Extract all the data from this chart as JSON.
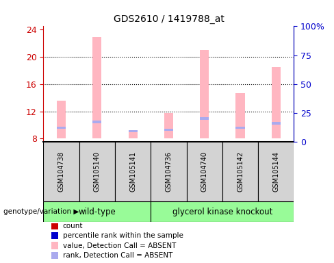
{
  "title": "GDS2610 / 1419788_at",
  "samples": [
    "GSM104738",
    "GSM105140",
    "GSM105141",
    "GSM104736",
    "GSM104740",
    "GSM105142",
    "GSM105144"
  ],
  "wt_count": 3,
  "gk_count": 4,
  "group_labels": [
    "wild-type",
    "glycerol kinase knockout"
  ],
  "group_color": "#98FB98",
  "ylim_left": [
    7.5,
    24.5
  ],
  "ylim_right": [
    0,
    100
  ],
  "yticks_left": [
    8,
    12,
    16,
    20,
    24
  ],
  "yticks_right": [
    0,
    25,
    50,
    75,
    100
  ],
  "yticklabels_right": [
    "0",
    "25",
    "50",
    "75",
    "100%"
  ],
  "bar_bottom": 8.0,
  "pink_top": [
    13.6,
    22.9,
    9.2,
    11.8,
    21.0,
    14.7,
    18.5
  ],
  "blue_y": [
    9.4,
    10.3,
    8.9,
    9.1,
    10.8,
    9.4,
    10.1
  ],
  "blue_h": [
    0.35,
    0.35,
    0.35,
    0.35,
    0.35,
    0.35,
    0.35
  ],
  "pink_color": "#FFB6C1",
  "blue_color": "#AAAAEE",
  "bar_width": 0.25,
  "left_tick_color": "#CC0000",
  "right_tick_color": "#0000CC",
  "grid_yticks": [
    12,
    16,
    20
  ],
  "legend_items": [
    {
      "color": "#CC0000",
      "label": "count"
    },
    {
      "color": "#0000CC",
      "label": "percentile rank within the sample"
    },
    {
      "color": "#FFB6C1",
      "label": "value, Detection Call = ABSENT"
    },
    {
      "color": "#AAAAEE",
      "label": "rank, Detection Call = ABSENT"
    }
  ],
  "genotype_label": "genotype/variation",
  "sample_box_color": "#D3D3D3",
  "fig_width": 4.88,
  "fig_height": 3.84,
  "dpi": 100
}
